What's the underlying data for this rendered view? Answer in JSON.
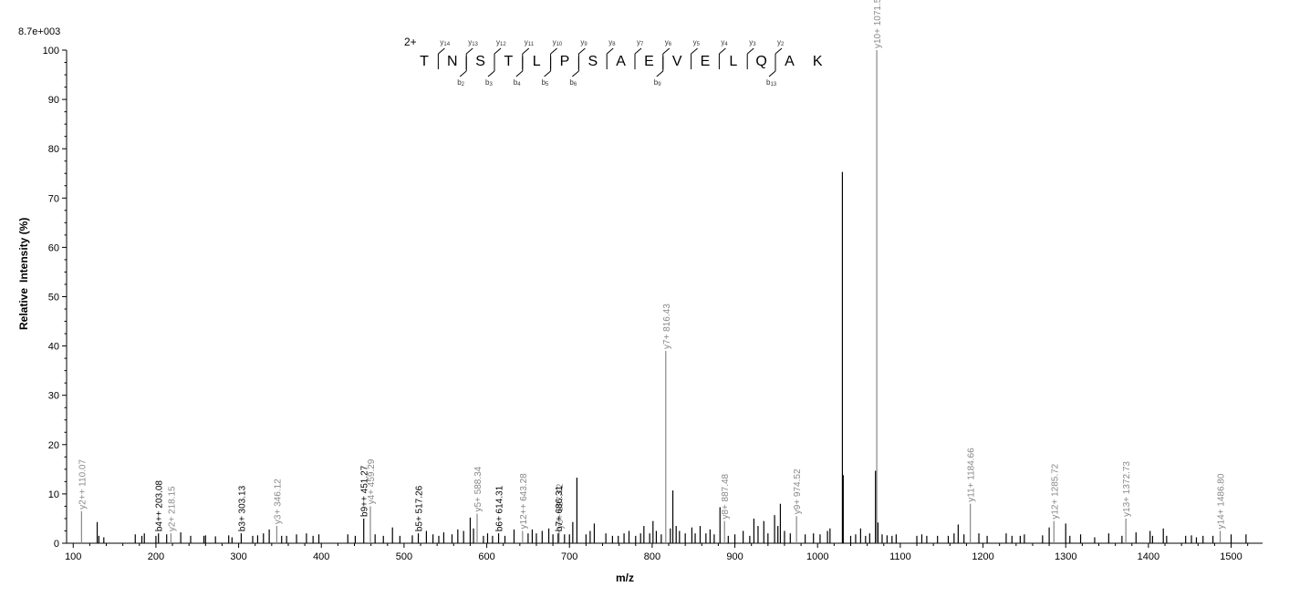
{
  "chart_data": {
    "type": "bar",
    "intensity_max_label": "8.7e+003",
    "xlabel": "m/z",
    "ylabel_part1": "Relative",
    "ylabel_part2": "Intensity (%)",
    "xlim": [
      92,
      1538
    ],
    "ylim": [
      0,
      100
    ],
    "x_ticks": [
      100,
      200,
      300,
      400,
      500,
      600,
      700,
      800,
      900,
      1000,
      1100,
      1200,
      1300,
      1400,
      1500
    ],
    "y_ticks": [
      0,
      10,
      20,
      30,
      40,
      50,
      60,
      70,
      80,
      90,
      100
    ],
    "colors": {
      "matched_y": "#888888",
      "matched_b": "#000000",
      "unmatched": "#000000"
    },
    "annotated_peaks": [
      {
        "mz": 110.07,
        "intensity": 6.5,
        "label": "y2++ 110.07",
        "series": "y"
      },
      {
        "mz": 203.08,
        "intensity": 2.0,
        "label": "b4++ 203.08",
        "series": "b"
      },
      {
        "mz": 218.15,
        "intensity": 2.0,
        "label": "y2+ 218.15",
        "series": "y"
      },
      {
        "mz": 303.13,
        "intensity": 2.0,
        "label": "b3+ 303.13",
        "series": "b"
      },
      {
        "mz": 346.12,
        "intensity": 3.5,
        "label": "y3+ 346.12",
        "series": "y"
      },
      {
        "mz": 451.27,
        "intensity": 5.0,
        "label": "b9++ 451.27",
        "series": "b"
      },
      {
        "mz": 459.29,
        "intensity": 7.5,
        "label": "y4+ 459.29",
        "series": "y"
      },
      {
        "mz": 517.26,
        "intensity": 2.0,
        "label": "b5+ 517.26",
        "series": "b"
      },
      {
        "mz": 588.34,
        "intensity": 6.0,
        "label": "y5+ 588.34",
        "series": "y"
      },
      {
        "mz": 614.31,
        "intensity": 2.0,
        "label": "b6+ 614.31",
        "series": "b"
      },
      {
        "mz": 643.28,
        "intensity": 2.5,
        "label": "y12++ 643.28",
        "series": "y"
      },
      {
        "mz": 687.42,
        "intensity": 2.5,
        "label": "y6+ 687.42",
        "series": "y"
      },
      {
        "mz": 686.31,
        "intensity": 2.0,
        "label": "b7+ 686.31",
        "series": "b"
      },
      {
        "mz": 816.43,
        "intensity": 39.0,
        "label": "y7+ 816.43",
        "series": "y"
      },
      {
        "mz": 887.48,
        "intensity": 4.5,
        "label": "y8+ 887.48",
        "series": "y"
      },
      {
        "mz": 974.52,
        "intensity": 5.5,
        "label": "y9+ 974.52",
        "series": "y"
      },
      {
        "mz": 1071.57,
        "intensity": 100.0,
        "label": "y10+ 1071.57",
        "series": "y"
      },
      {
        "mz": 1184.66,
        "intensity": 8.0,
        "label": "y11+ 1184.66",
        "series": "y"
      },
      {
        "mz": 1285.72,
        "intensity": 4.5,
        "label": "y12+ 1285.72",
        "series": "y"
      },
      {
        "mz": 1372.73,
        "intensity": 5.0,
        "label": "y13+ 1372.73",
        "series": "y"
      },
      {
        "mz": 1486.8,
        "intensity": 2.5,
        "label": "y14+ 1486.80",
        "series": "y"
      }
    ],
    "unannotated_peaks": [
      {
        "mz": 129,
        "intensity": 4.3
      },
      {
        "mz": 131,
        "intensity": 1.5
      },
      {
        "mz": 137,
        "intensity": 1.2
      },
      {
        "mz": 175,
        "intensity": 1.8
      },
      {
        "mz": 183,
        "intensity": 1.5
      },
      {
        "mz": 186,
        "intensity": 2.0
      },
      {
        "mz": 200,
        "intensity": 1.5
      },
      {
        "mz": 213,
        "intensity": 1.8
      },
      {
        "mz": 230,
        "intensity": 2.2
      },
      {
        "mz": 242,
        "intensity": 1.5
      },
      {
        "mz": 258,
        "intensity": 1.5
      },
      {
        "mz": 260,
        "intensity": 1.6
      },
      {
        "mz": 272,
        "intensity": 1.4
      },
      {
        "mz": 288,
        "intensity": 1.6
      },
      {
        "mz": 292,
        "intensity": 1.2
      },
      {
        "mz": 317,
        "intensity": 1.5
      },
      {
        "mz": 323,
        "intensity": 1.6
      },
      {
        "mz": 330,
        "intensity": 2.0
      },
      {
        "mz": 337,
        "intensity": 2.8
      },
      {
        "mz": 352,
        "intensity": 1.5
      },
      {
        "mz": 358,
        "intensity": 1.5
      },
      {
        "mz": 370,
        "intensity": 1.8
      },
      {
        "mz": 382,
        "intensity": 2.0
      },
      {
        "mz": 390,
        "intensity": 1.5
      },
      {
        "mz": 397,
        "intensity": 1.8
      },
      {
        "mz": 432,
        "intensity": 1.8
      },
      {
        "mz": 441,
        "intensity": 1.5
      },
      {
        "mz": 465,
        "intensity": 1.8
      },
      {
        "mz": 475,
        "intensity": 1.5
      },
      {
        "mz": 486,
        "intensity": 3.2
      },
      {
        "mz": 495,
        "intensity": 1.5
      },
      {
        "mz": 510,
        "intensity": 1.6
      },
      {
        "mz": 527,
        "intensity": 2.5
      },
      {
        "mz": 535,
        "intensity": 1.8
      },
      {
        "mz": 542,
        "intensity": 1.5
      },
      {
        "mz": 548,
        "intensity": 2.2
      },
      {
        "mz": 558,
        "intensity": 1.8
      },
      {
        "mz": 565,
        "intensity": 2.8
      },
      {
        "mz": 572,
        "intensity": 2.5
      },
      {
        "mz": 580,
        "intensity": 5.2
      },
      {
        "mz": 584,
        "intensity": 3.0
      },
      {
        "mz": 596,
        "intensity": 1.5
      },
      {
        "mz": 601,
        "intensity": 2.0
      },
      {
        "mz": 607,
        "intensity": 1.5
      },
      {
        "mz": 622,
        "intensity": 1.5
      },
      {
        "mz": 633,
        "intensity": 2.8
      },
      {
        "mz": 650,
        "intensity": 2.0
      },
      {
        "mz": 655,
        "intensity": 2.8
      },
      {
        "mz": 660,
        "intensity": 2.0
      },
      {
        "mz": 667,
        "intensity": 2.5
      },
      {
        "mz": 675,
        "intensity": 3.0
      },
      {
        "mz": 680,
        "intensity": 1.8
      },
      {
        "mz": 694,
        "intensity": 1.8
      },
      {
        "mz": 700,
        "intensity": 1.8
      },
      {
        "mz": 704,
        "intensity": 4.3
      },
      {
        "mz": 709,
        "intensity": 13.3
      },
      {
        "mz": 720,
        "intensity": 1.8
      },
      {
        "mz": 725,
        "intensity": 2.5
      },
      {
        "mz": 730,
        "intensity": 4.0
      },
      {
        "mz": 744,
        "intensity": 2.0
      },
      {
        "mz": 752,
        "intensity": 1.5
      },
      {
        "mz": 759,
        "intensity": 1.5
      },
      {
        "mz": 766,
        "intensity": 2.0
      },
      {
        "mz": 772,
        "intensity": 2.5
      },
      {
        "mz": 780,
        "intensity": 1.5
      },
      {
        "mz": 786,
        "intensity": 2.0
      },
      {
        "mz": 790,
        "intensity": 3.5
      },
      {
        "mz": 797,
        "intensity": 2.0
      },
      {
        "mz": 801,
        "intensity": 4.5
      },
      {
        "mz": 805,
        "intensity": 2.5
      },
      {
        "mz": 811,
        "intensity": 1.8
      },
      {
        "mz": 822,
        "intensity": 3.0
      },
      {
        "mz": 825,
        "intensity": 10.7
      },
      {
        "mz": 829,
        "intensity": 3.5
      },
      {
        "mz": 833,
        "intensity": 2.5
      },
      {
        "mz": 840,
        "intensity": 2.0
      },
      {
        "mz": 848,
        "intensity": 3.2
      },
      {
        "mz": 852,
        "intensity": 2.0
      },
      {
        "mz": 858,
        "intensity": 3.5
      },
      {
        "mz": 865,
        "intensity": 2.0
      },
      {
        "mz": 870,
        "intensity": 2.8
      },
      {
        "mz": 875,
        "intensity": 1.8
      },
      {
        "mz": 882,
        "intensity": 7.3
      },
      {
        "mz": 892,
        "intensity": 1.5
      },
      {
        "mz": 900,
        "intensity": 1.8
      },
      {
        "mz": 910,
        "intensity": 2.5
      },
      {
        "mz": 918,
        "intensity": 1.5
      },
      {
        "mz": 923,
        "intensity": 5.0
      },
      {
        "mz": 928,
        "intensity": 3.5
      },
      {
        "mz": 935,
        "intensity": 4.5
      },
      {
        "mz": 940,
        "intensity": 2.0
      },
      {
        "mz": 948,
        "intensity": 5.7
      },
      {
        "mz": 952,
        "intensity": 3.5
      },
      {
        "mz": 955,
        "intensity": 8.0
      },
      {
        "mz": 960,
        "intensity": 2.5
      },
      {
        "mz": 967,
        "intensity": 2.0
      },
      {
        "mz": 985,
        "intensity": 1.8
      },
      {
        "mz": 995,
        "intensity": 2.0
      },
      {
        "mz": 1003,
        "intensity": 1.8
      },
      {
        "mz": 1012,
        "intensity": 2.5
      },
      {
        "mz": 1015,
        "intensity": 3.0
      },
      {
        "mz": 1030,
        "intensity": 75.3
      },
      {
        "mz": 1031,
        "intensity": 13.8
      },
      {
        "mz": 1040,
        "intensity": 1.5
      },
      {
        "mz": 1046,
        "intensity": 1.8
      },
      {
        "mz": 1052,
        "intensity": 3.0
      },
      {
        "mz": 1058,
        "intensity": 1.5
      },
      {
        "mz": 1063,
        "intensity": 2.0
      },
      {
        "mz": 1070,
        "intensity": 14.7
      },
      {
        "mz": 1073,
        "intensity": 4.2
      },
      {
        "mz": 1078,
        "intensity": 1.8
      },
      {
        "mz": 1084,
        "intensity": 1.6
      },
      {
        "mz": 1090,
        "intensity": 1.5
      },
      {
        "mz": 1095,
        "intensity": 1.8
      },
      {
        "mz": 1120,
        "intensity": 1.5
      },
      {
        "mz": 1126,
        "intensity": 1.8
      },
      {
        "mz": 1132,
        "intensity": 1.5
      },
      {
        "mz": 1145,
        "intensity": 1.5
      },
      {
        "mz": 1158,
        "intensity": 1.5
      },
      {
        "mz": 1165,
        "intensity": 2.0
      },
      {
        "mz": 1170,
        "intensity": 3.8
      },
      {
        "mz": 1177,
        "intensity": 1.8
      },
      {
        "mz": 1195,
        "intensity": 2.0
      },
      {
        "mz": 1205,
        "intensity": 1.5
      },
      {
        "mz": 1228,
        "intensity": 2.0
      },
      {
        "mz": 1235,
        "intensity": 1.5
      },
      {
        "mz": 1245,
        "intensity": 1.5
      },
      {
        "mz": 1250,
        "intensity": 1.8
      },
      {
        "mz": 1272,
        "intensity": 1.6
      },
      {
        "mz": 1280,
        "intensity": 3.2
      },
      {
        "mz": 1300,
        "intensity": 4.0
      },
      {
        "mz": 1305,
        "intensity": 1.5
      },
      {
        "mz": 1318,
        "intensity": 1.8
      },
      {
        "mz": 1335,
        "intensity": 1.2
      },
      {
        "mz": 1352,
        "intensity": 2.0
      },
      {
        "mz": 1368,
        "intensity": 1.5
      },
      {
        "mz": 1385,
        "intensity": 2.2
      },
      {
        "mz": 1402,
        "intensity": 2.5
      },
      {
        "mz": 1405,
        "intensity": 1.5
      },
      {
        "mz": 1418,
        "intensity": 3.0
      },
      {
        "mz": 1422,
        "intensity": 1.5
      },
      {
        "mz": 1445,
        "intensity": 1.5
      },
      {
        "mz": 1452,
        "intensity": 1.6
      },
      {
        "mz": 1458,
        "intensity": 1.2
      },
      {
        "mz": 1466,
        "intensity": 1.5
      },
      {
        "mz": 1478,
        "intensity": 1.5
      },
      {
        "mz": 1500,
        "intensity": 1.8
      },
      {
        "mz": 1518,
        "intensity": 1.8
      }
    ],
    "sequence": {
      "charge": "2+",
      "residues": [
        "T",
        "N",
        "S",
        "T",
        "L",
        "P",
        "S",
        "A",
        "E",
        "V",
        "E",
        "L",
        "Q",
        "A",
        "K"
      ],
      "y_ions": [
        {
          "label": "y",
          "sub": "14",
          "after": 0
        },
        {
          "label": "y",
          "sub": "13",
          "after": 1
        },
        {
          "label": "y",
          "sub": "12",
          "after": 2
        },
        {
          "label": "y",
          "sub": "11",
          "after": 3
        },
        {
          "label": "y",
          "sub": "10",
          "after": 4
        },
        {
          "label": "y",
          "sub": "9",
          "after": 5
        },
        {
          "label": "y",
          "sub": "8",
          "after": 6
        },
        {
          "label": "y",
          "sub": "7",
          "after": 7
        },
        {
          "label": "y",
          "sub": "6",
          "after": 8
        },
        {
          "label": "y",
          "sub": "5",
          "after": 9
        },
        {
          "label": "y",
          "sub": "4",
          "after": 10
        },
        {
          "label": "y",
          "sub": "3",
          "after": 11
        },
        {
          "label": "y",
          "sub": "2",
          "after": 12
        }
      ],
      "b_ions": [
        {
          "label": "b",
          "sub": "2",
          "after": 1
        },
        {
          "label": "b",
          "sub": "3",
          "after": 2
        },
        {
          "label": "b",
          "sub": "4",
          "after": 3
        },
        {
          "label": "b",
          "sub": "5",
          "after": 4
        },
        {
          "label": "b",
          "sub": "6",
          "after": 5
        },
        {
          "label": "b",
          "sub": "9",
          "after": 8
        },
        {
          "label": "b",
          "sub": "13",
          "after": 12
        }
      ]
    }
  }
}
